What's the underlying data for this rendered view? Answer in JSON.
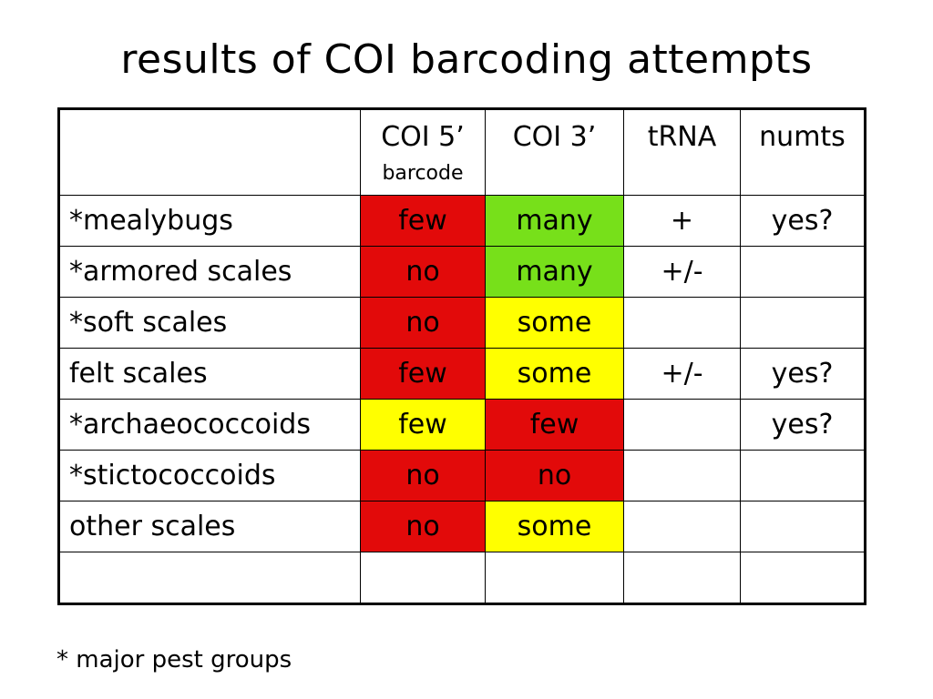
{
  "title": "results of COI barcoding attempts",
  "colors": {
    "red": "#e20a0a",
    "green": "#77e01a",
    "yellow": "#ffff00",
    "white": "#ffffff"
  },
  "table": {
    "headers": [
      {
        "main": "",
        "sub": ""
      },
      {
        "main": "COI 5’",
        "sub": "barcode"
      },
      {
        "main": "COI 3’",
        "sub": ""
      },
      {
        "main": "tRNA",
        "sub": ""
      },
      {
        "main": "numts",
        "sub": ""
      }
    ],
    "rows": [
      {
        "label": "*mealybugs",
        "coi5": "few",
        "coi3": "many",
        "trna": "+",
        "numts": "yes?",
        "coi5_color": "red",
        "coi3_color": "green"
      },
      {
        "label": "*armored scales",
        "coi5": "no",
        "coi3": "many",
        "trna": "+/-",
        "numts": "",
        "coi5_color": "red",
        "coi3_color": "green"
      },
      {
        "label": "*soft scales",
        "coi5": "no",
        "coi3": "some",
        "trna": "",
        "numts": "",
        "coi5_color": "red",
        "coi3_color": "yellow"
      },
      {
        "label": "felt scales",
        "coi5": "few",
        "coi3": "some",
        "trna": "+/-",
        "numts": "yes?",
        "coi5_color": "red",
        "coi3_color": "yellow"
      },
      {
        "label": "*archaeococcoids",
        "coi5": "few",
        "coi3": "few",
        "trna": "",
        "numts": "yes?",
        "coi5_color": "yellow",
        "coi3_color": "red"
      },
      {
        "label": "*stictococcoids",
        "coi5": "no",
        "coi3": "no",
        "trna": "",
        "numts": "",
        "coi5_color": "red",
        "coi3_color": "red"
      },
      {
        "label": "other scales",
        "coi5": "no",
        "coi3": "some",
        "trna": "",
        "numts": "",
        "coi5_color": "red",
        "coi3_color": "yellow"
      },
      {
        "label": "",
        "coi5": "",
        "coi3": "",
        "trna": "",
        "numts": "",
        "coi5_color": "white",
        "coi3_color": "white"
      }
    ]
  },
  "footnote": "* major pest groups"
}
